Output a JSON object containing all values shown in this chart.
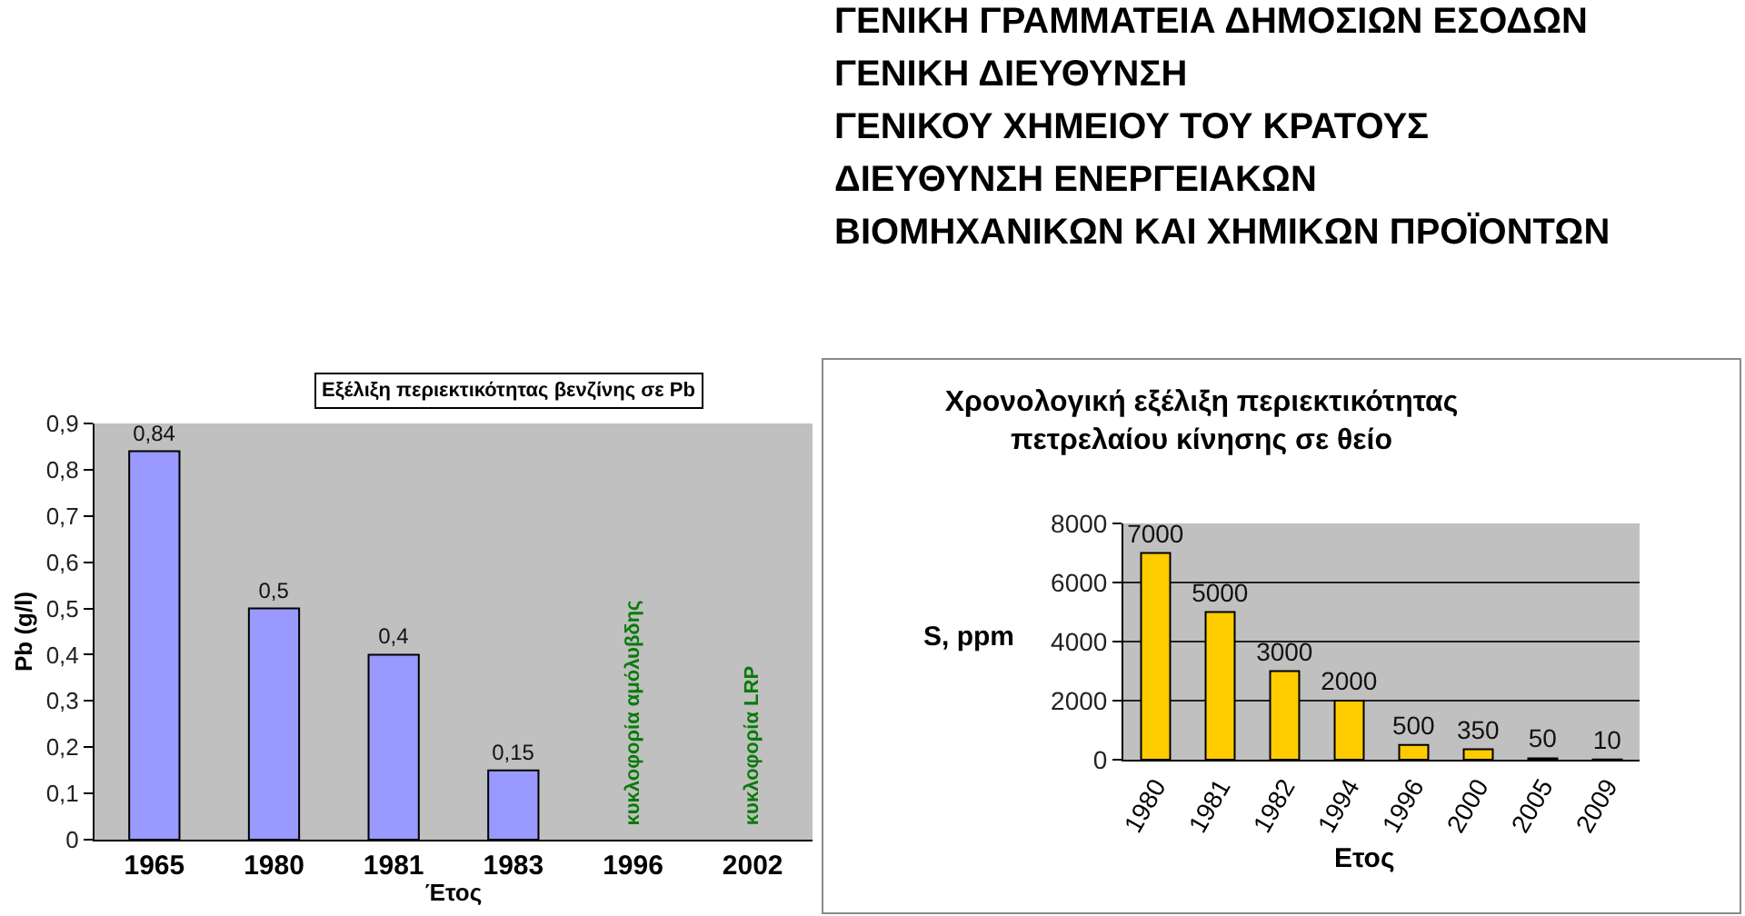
{
  "chart_data": [
    {
      "type": "other",
      "annotations": [
        "ΓΕΝΙΚΗ ΓΡΑΜΜΑΤΕΙΑ ΔΗΜΟΣΙΩΝ ΕΣΟΔΩΝ",
        "ΓΕΝΙΚΗ ΔΙΕΥΘΥΝΣΗ",
        "ΓΕΝΙΚΟΥ ΧΗΜΕΙΟΥ ΤΟΥ ΚΡΑΤΟΥΣ",
        "ΔΙΕΥΘΥΝΣΗ ΕΝΕΡΓΕΙΑΚΩΝ",
        "ΒΙΟΜΗΧΑΝΙΚΩΝ ΚΑΙ ΧΗΜΙΚΩΝ ΠΡΟΪΟΝΤΩΝ"
      ]
    },
    {
      "type": "bar",
      "title": "Εξέλιξη περιεκτικότητας βενζίνης σε Pb",
      "xlabel": "Έτος",
      "ylabel": "Pb (g/l)",
      "categories": [
        "1965",
        "1980",
        "1981",
        "1983",
        "1996",
        "2002"
      ],
      "values": [
        0.84,
        0.5,
        0.4,
        0.15,
        null,
        null
      ],
      "value_labels": [
        "0,84",
        "0,5",
        "0,4",
        "0,15",
        null,
        null
      ],
      "color": "#9999ff",
      "ylim": [
        0,
        0.9
      ],
      "yticks": [
        0,
        {
          "value": 0.1,
          "label": "0,1"
        },
        {
          "value": 0.2,
          "label": "0,2"
        },
        {
          "value": 0.3,
          "label": "0,3"
        },
        {
          "value": 0.4,
          "label": "0,4"
        },
        {
          "value": 0.5,
          "label": "0,5"
        },
        {
          "value": 0.6,
          "label": "0,6"
        },
        {
          "value": 0.7,
          "label": "0,7"
        },
        {
          "value": 0.8,
          "label": "0,8"
        },
        {
          "value": 0.9,
          "label": "0,9"
        }
      ],
      "annotations": [
        "κυκλοφορία αμόλυβδης",
        "κυκλοφορία LRP"
      ]
    },
    {
      "type": "bar",
      "title": "Χρονολογική εξέλιξη περιεκτικότητας\nπετρελαίου κίνησης σε θείο",
      "xlabel": "Ετος",
      "ylabel": "S, ppm",
      "categories": [
        "1980",
        "1981",
        "1982",
        "1994",
        "1996",
        "2000",
        "2005",
        "2009"
      ],
      "values": [
        7000,
        5000,
        3000,
        2000,
        500,
        350,
        50,
        10
      ],
      "color": "#ffcc00",
      "data_labels": true,
      "ylim": [
        0,
        8000
      ],
      "yticks": [
        0,
        2000,
        4000,
        6000,
        8000
      ],
      "grid": "y"
    }
  ]
}
